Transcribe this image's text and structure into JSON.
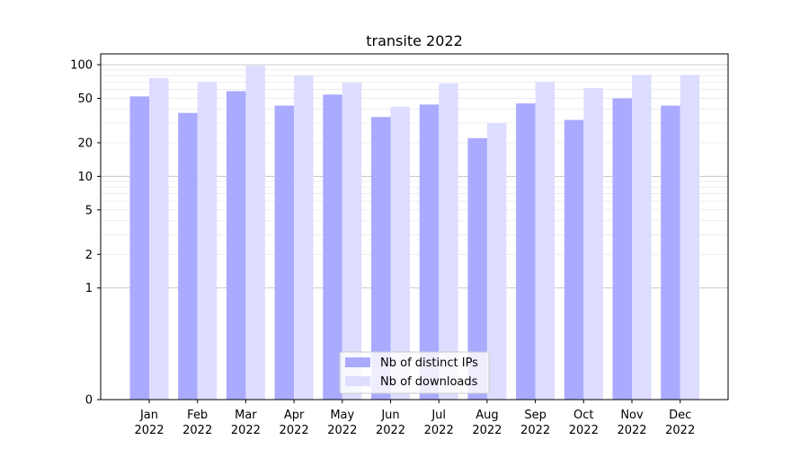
{
  "chart_data": {
    "type": "bar",
    "title": "transite 2022",
    "xlabel": "",
    "ylabel": "",
    "y_scale": "symlog",
    "ylim": [
      0,
      125
    ],
    "y_ticks": [
      0,
      1,
      2,
      5,
      10,
      20,
      50,
      100
    ],
    "y_tick_labels": [
      "0",
      "1",
      "2",
      "5",
      "10",
      "20",
      "50",
      "100"
    ],
    "grid": true,
    "legend_position": "bottom-center",
    "categories": [
      {
        "month": "Jan",
        "year": "2022"
      },
      {
        "month": "Feb",
        "year": "2022"
      },
      {
        "month": "Mar",
        "year": "2022"
      },
      {
        "month": "Apr",
        "year": "2022"
      },
      {
        "month": "May",
        "year": "2022"
      },
      {
        "month": "Jun",
        "year": "2022"
      },
      {
        "month": "Jul",
        "year": "2022"
      },
      {
        "month": "Aug",
        "year": "2022"
      },
      {
        "month": "Sep",
        "year": "2022"
      },
      {
        "month": "Oct",
        "year": "2022"
      },
      {
        "month": "Nov",
        "year": "2022"
      },
      {
        "month": "Dec",
        "year": "2022"
      }
    ],
    "series": [
      {
        "name": "Nb of distinct IPs",
        "color": "#aaaaff",
        "values": [
          52,
          37,
          58,
          43,
          54,
          34,
          44,
          22,
          45,
          32,
          50,
          43
        ]
      },
      {
        "name": "Nb of downloads",
        "color": "#ddddff",
        "values": [
          76,
          70,
          98,
          80,
          69,
          42,
          68,
          30,
          70,
          62,
          81,
          81
        ]
      }
    ]
  }
}
